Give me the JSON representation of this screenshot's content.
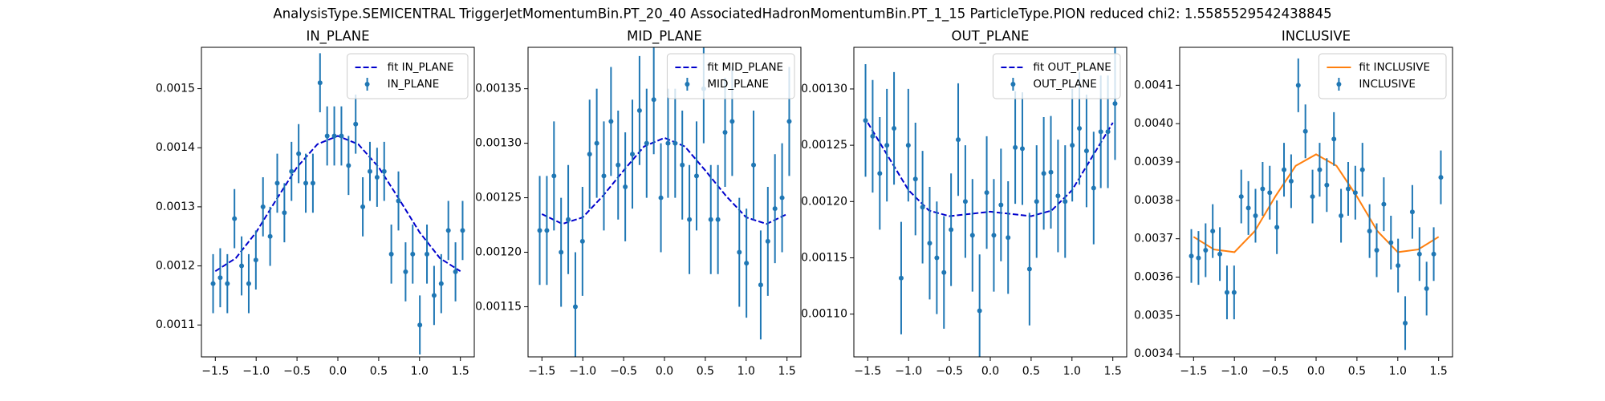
{
  "title": "AnalysisType.SEMICENTRAL TriggerJetMomentumBin.PT_20_40 AssociatedHadronMomentumBin.PT_1_15 ParticleType.PION reduced chi2: 1.5585529542438845",
  "chart_data": [
    {
      "type": "errorbar",
      "title": "IN_PLANE",
      "legend": "upper right",
      "xlim": [
        -1.67,
        1.67
      ],
      "ylim": [
        0.001046,
        0.00157
      ],
      "xticks": [
        {
          "value": -1.5,
          "label": "−1.5"
        },
        {
          "value": -1,
          "label": "−1.0"
        },
        {
          "value": -0.5,
          "label": "−0.5"
        },
        {
          "value": 0,
          "label": "0.0"
        },
        0.5,
        {
          "value": 1,
          "label": "1.0"
        },
        1.5
      ],
      "yticks": [
        0.0011,
        0.0012,
        0.0013,
        0.0014,
        0.0015
      ],
      "series": [
        {
          "name": "fit IN_PLANE",
          "kind": "line",
          "dashed": true,
          "color": "#0000cc",
          "x": [
            -1.5,
            -1.25,
            -1,
            -0.75,
            -0.5,
            -0.25,
            0,
            0.25,
            0.5,
            0.75,
            1,
            1.25,
            1.5
          ],
          "values": [
            0.001191,
            0.001213,
            0.001257,
            0.001313,
            0.001367,
            0.001406,
            0.00142,
            0.001406,
            0.001367,
            0.001313,
            0.001257,
            0.001213,
            0.001191
          ]
        },
        {
          "name": "IN_PLANE",
          "kind": "errorbar",
          "color": "#1f77b4",
          "x": [
            -1.5272,
            -1.4399,
            -1.3526,
            -1.2654,
            -1.1781,
            -1.0908,
            -1.0036,
            -0.9163,
            -0.829,
            -0.7418,
            -0.6545,
            -0.5672,
            -0.48,
            -0.3927,
            -0.3054,
            -0.2182,
            -0.1309,
            -0.0436,
            0.0436,
            0.1309,
            0.2182,
            0.3054,
            0.3927,
            0.48,
            0.5672,
            0.6545,
            0.7418,
            0.829,
            0.9163,
            1.0036,
            1.0908,
            1.1781,
            1.2654,
            1.3526,
            1.4399,
            1.5272
          ],
          "values": [
            0.00117,
            0.00118,
            0.00117,
            0.00128,
            0.0012,
            0.00117,
            0.00121,
            0.0013,
            0.00125,
            0.00134,
            0.00129,
            0.00136,
            0.00139,
            0.00134,
            0.00134,
            0.00151,
            0.00142,
            0.00142,
            0.00142,
            0.00137,
            0.00144,
            0.0013,
            0.00136,
            0.00135,
            0.00136,
            0.00122,
            0.00131,
            0.00119,
            0.00122,
            0.0011,
            0.00122,
            0.00115,
            0.00117,
            0.00126,
            0.00119,
            0.00126
          ],
          "errors": [
            5e-05,
            5e-05,
            5e-05,
            5e-05,
            5e-05,
            5e-05,
            5e-05,
            5e-05,
            5e-05,
            5e-05,
            5e-05,
            5e-05,
            5e-05,
            5e-05,
            5e-05,
            5e-05,
            5e-05,
            5e-05,
            5e-05,
            5e-05,
            5e-05,
            5e-05,
            5e-05,
            5e-05,
            5e-05,
            5e-05,
            5e-05,
            5e-05,
            5e-05,
            5e-05,
            5e-05,
            5e-05,
            5e-05,
            5e-05,
            5e-05,
            5e-05
          ]
        }
      ]
    },
    {
      "type": "errorbar",
      "title": "MID_PLANE",
      "legend": "upper right",
      "xlim": [
        -1.67,
        1.67
      ],
      "ylim": [
        0.001104,
        0.001388
      ],
      "xticks": [
        {
          "value": -1.5,
          "label": "−1.5"
        },
        {
          "value": -1,
          "label": "−1.0"
        },
        {
          "value": -0.5,
          "label": "−0.5"
        },
        {
          "value": 0,
          "label": "0.0"
        },
        0.5,
        {
          "value": 1,
          "label": "1.0"
        },
        1.5
      ],
      "yticks": [
        0.00115,
        {
          "value": 0.0012,
          "label": "0.00120"
        },
        0.00125,
        {
          "value": 0.0013,
          "label": "0.00130"
        },
        0.00135
      ],
      "series": [
        {
          "name": "fit MID_PLANE",
          "kind": "line",
          "dashed": true,
          "color": "#0000cc",
          "x": [
            -1.5,
            -1.25,
            -1,
            -0.75,
            -0.5,
            -0.25,
            0,
            0.25,
            0.5,
            0.75,
            1,
            1.25,
            1.5
          ],
          "values": [
            0.001235,
            0.001226,
            0.001232,
            0.001252,
            0.001275,
            0.001297,
            0.001305,
            0.001297,
            0.001275,
            0.001252,
            0.001232,
            0.001226,
            0.001235
          ]
        },
        {
          "name": "MID_PLANE",
          "kind": "errorbar",
          "color": "#1f77b4",
          "x": [
            -1.5272,
            -1.4399,
            -1.3526,
            -1.2654,
            -1.1781,
            -1.0908,
            -1.0036,
            -0.9163,
            -0.829,
            -0.7418,
            -0.6545,
            -0.5672,
            -0.48,
            -0.3927,
            -0.3054,
            -0.2182,
            -0.1309,
            -0.0436,
            0.0436,
            0.1309,
            0.2182,
            0.3054,
            0.3927,
            0.48,
            0.5672,
            0.6545,
            0.7418,
            0.829,
            0.9163,
            1.0036,
            1.0908,
            1.1781,
            1.2654,
            1.3526,
            1.4399,
            1.5272
          ],
          "values": [
            0.00122,
            0.00122,
            0.00127,
            0.0012,
            0.00123,
            0.00115,
            0.00121,
            0.00129,
            0.0013,
            0.00127,
            0.00132,
            0.00128,
            0.00126,
            0.00129,
            0.00133,
            0.0013,
            0.00134,
            0.00125,
            0.0013,
            0.0013,
            0.00128,
            0.00123,
            0.00127,
            0.00135,
            0.00123,
            0.00123,
            0.00131,
            0.00132,
            0.0012,
            0.00119,
            0.00128,
            0.00117,
            0.00121,
            0.00124,
            0.00125,
            0.00132
          ],
          "errors": [
            5e-05,
            5e-05,
            5e-05,
            5e-05,
            5e-05,
            5e-05,
            5e-05,
            5e-05,
            5e-05,
            5e-05,
            5e-05,
            5e-05,
            5e-05,
            5e-05,
            5e-05,
            5e-05,
            5e-05,
            5e-05,
            5e-05,
            5e-05,
            5e-05,
            5e-05,
            5e-05,
            5e-05,
            5e-05,
            5e-05,
            5e-05,
            5e-05,
            5e-05,
            5e-05,
            5e-05,
            5e-05,
            5e-05,
            5e-05,
            5e-05,
            5e-05
          ]
        }
      ]
    },
    {
      "type": "errorbar",
      "title": "OUT_PLANE",
      "legend": "upper right",
      "xlim": [
        -1.67,
        1.67
      ],
      "ylim": [
        0.001062,
        0.001337
      ],
      "xticks": [
        {
          "value": -1.5,
          "label": "−1.5"
        },
        {
          "value": -1,
          "label": "−1.0"
        },
        {
          "value": -0.5,
          "label": "−0.5"
        },
        {
          "value": 0,
          "label": "0.0"
        },
        0.5,
        {
          "value": 1,
          "label": "1.0"
        },
        1.5
      ],
      "yticks": [
        {
          "value": 0.0011,
          "label": "0.00110"
        },
        0.00115,
        {
          "value": 0.0012,
          "label": "0.00120"
        },
        0.00125,
        {
          "value": 0.0013,
          "label": "0.00130"
        }
      ],
      "series": [
        {
          "name": "fit OUT_PLANE",
          "kind": "line",
          "dashed": true,
          "color": "#0000cc",
          "x": [
            -1.5,
            -1.25,
            -1,
            -0.75,
            -0.5,
            -0.25,
            0,
            0.25,
            0.5,
            0.75,
            1,
            1.25,
            1.5
          ],
          "values": [
            0.00127,
            0.00124,
            0.00121,
            0.001192,
            0.001187,
            0.001189,
            0.001191,
            0.001189,
            0.001187,
            0.001192,
            0.00121,
            0.00124,
            0.00127
          ]
        },
        {
          "name": "OUT_PLANE",
          "kind": "errorbar",
          "color": "#1f77b4",
          "x": [
            -1.5272,
            -1.4399,
            -1.3526,
            -1.2654,
            -1.1781,
            -1.0908,
            -1.0036,
            -0.9163,
            -0.829,
            -0.7418,
            -0.6545,
            -0.5672,
            -0.48,
            -0.3927,
            -0.3054,
            -0.2182,
            -0.1309,
            -0.0436,
            0.0436,
            0.1309,
            0.2182,
            0.3054,
            0.3927,
            0.48,
            0.5672,
            0.6545,
            0.7418,
            0.829,
            0.9163,
            1.0036,
            1.0908,
            1.1781,
            1.2654,
            1.3526,
            1.4399,
            1.5272
          ],
          "values": [
            0.001272,
            0.001258,
            0.001225,
            0.00125,
            0.001265,
            0.001132,
            0.00125,
            0.00122,
            0.001195,
            0.001163,
            0.00115,
            0.001137,
            0.001175,
            0.001255,
            0.0012,
            0.00117,
            0.001103,
            0.001208,
            0.00117,
            0.001197,
            0.001168,
            0.001248,
            0.001247,
            0.00114,
            0.0012,
            0.001225,
            0.001226,
            0.001205,
            0.0012,
            0.00125,
            0.001265,
            0.001245,
            0.001212,
            0.001262,
            0.001262,
            0.001287
          ],
          "errors": [
            5e-05,
            5e-05,
            5e-05,
            5e-05,
            5e-05,
            5e-05,
            5e-05,
            5e-05,
            5e-05,
            5e-05,
            5e-05,
            5e-05,
            5e-05,
            5e-05,
            5e-05,
            5e-05,
            5e-05,
            5e-05,
            5e-05,
            5e-05,
            5e-05,
            5e-05,
            5e-05,
            5e-05,
            5e-05,
            5e-05,
            5e-05,
            5e-05,
            5e-05,
            5e-05,
            5e-05,
            5e-05,
            5e-05,
            5e-05,
            5e-05,
            5e-05
          ]
        }
      ]
    },
    {
      "type": "errorbar",
      "title": "INCLUSIVE",
      "legend": "upper right",
      "xlim": [
        -1.67,
        1.67
      ],
      "ylim": [
        0.003392,
        0.004199
      ],
      "xticks": [
        {
          "value": -1.5,
          "label": "−1.5"
        },
        {
          "value": -1,
          "label": "−1.0"
        },
        {
          "value": -0.5,
          "label": "−0.5"
        },
        {
          "value": 0,
          "label": "0.0"
        },
        0.5,
        {
          "value": 1,
          "label": "1.0"
        },
        1.5
      ],
      "yticks": [
        0.0034,
        0.0035,
        0.0036,
        0.0037,
        0.0038,
        0.0039,
        {
          "value": 0.004,
          "label": "0.0040"
        },
        0.0041
      ],
      "series": [
        {
          "name": "fit INCLUSIVE",
          "kind": "line",
          "dashed": false,
          "color": "#ff7f0e",
          "x": [
            -1.5,
            -1.25,
            -1,
            -0.75,
            -0.5,
            -0.25,
            0,
            0.25,
            0.5,
            0.75,
            1,
            1.25,
            1.5
          ],
          "values": [
            0.003705,
            0.003672,
            0.003665,
            0.00372,
            0.00381,
            0.00389,
            0.00392,
            0.00389,
            0.00381,
            0.00372,
            0.003665,
            0.003672,
            0.003705
          ]
        },
        {
          "name": "INCLUSIVE",
          "kind": "errorbar",
          "color": "#1f77b4",
          "x": [
            -1.5272,
            -1.4399,
            -1.3526,
            -1.2654,
            -1.1781,
            -1.0908,
            -1.0036,
            -0.9163,
            -0.829,
            -0.7418,
            -0.6545,
            -0.5672,
            -0.48,
            -0.3927,
            -0.3054,
            -0.2182,
            -0.1309,
            -0.0436,
            0.0436,
            0.1309,
            0.2182,
            0.3054,
            0.3927,
            0.48,
            0.5672,
            0.6545,
            0.7418,
            0.829,
            0.9163,
            1.0036,
            1.0908,
            1.1781,
            1.2654,
            1.3526,
            1.4399,
            1.5272
          ],
          "values": [
            0.003655,
            0.00365,
            0.00367,
            0.00372,
            0.00366,
            0.00356,
            0.00356,
            0.00381,
            0.00378,
            0.00376,
            0.00383,
            0.00382,
            0.00373,
            0.00388,
            0.00385,
            0.0041,
            0.00398,
            0.00381,
            0.00388,
            0.00384,
            0.00396,
            0.00376,
            0.00383,
            0.00382,
            0.00388,
            0.00372,
            0.00367,
            0.00379,
            0.00369,
            0.00363,
            0.00348,
            0.00377,
            0.00366,
            0.00357,
            0.00366,
            0.00386
          ],
          "errors": [
            7e-05,
            7e-05,
            7e-05,
            7e-05,
            7e-05,
            7e-05,
            7e-05,
            7e-05,
            7e-05,
            7e-05,
            7e-05,
            7e-05,
            7e-05,
            7e-05,
            7e-05,
            7e-05,
            7e-05,
            7e-05,
            7e-05,
            7e-05,
            7e-05,
            7e-05,
            7e-05,
            7e-05,
            7e-05,
            7e-05,
            7e-05,
            7e-05,
            7e-05,
            7e-05,
            7e-05,
            7e-05,
            7e-05,
            7e-05,
            7e-05,
            7e-05
          ]
        }
      ]
    }
  ]
}
